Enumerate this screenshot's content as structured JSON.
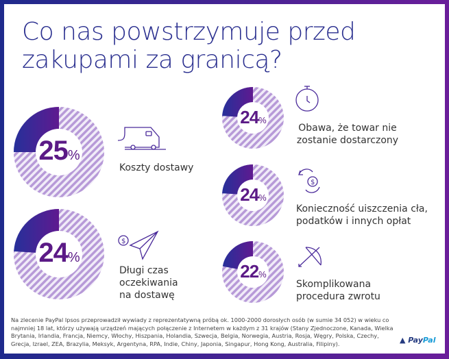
{
  "title_line1": "Co nas powstrzymuje przed",
  "title_line2": "zakupami za granicą?",
  "items": [
    {
      "value": "25",
      "unit": "%",
      "fraction": 0.25,
      "label": "Koszty dostawy",
      "icon": "delivery-van-icon"
    },
    {
      "value": "24",
      "unit": "%",
      "fraction": 0.24,
      "label": "Długi czas oczekiwania na dostawę",
      "icon": "paper-plane-dollar-icon"
    },
    {
      "value": "24",
      "unit": "%",
      "fraction": 0.24,
      "label": "Obawa, że towar nie zostanie dostarczony",
      "icon": "stopwatch-icon"
    },
    {
      "value": "24",
      "unit": "%",
      "fraction": 0.24,
      "label": "Konieczność uiszczenia cła, podatków i innych opłat",
      "icon": "currency-exchange-icon"
    },
    {
      "value": "22",
      "unit": "%",
      "fraction": 0.22,
      "label": "Skomplikowana procedura zwrotu",
      "icon": "bow-arrow-icon"
    }
  ],
  "footnote": "Na zlecenie PayPal Ipsos przeprowadził wywiady z reprezentatywną próbą ok. 1000-2000 dorosłych osób (w sumie 34 052) w wieku co najmniej 18 lat, którzy używają urządzeń mających połączenie z Internetem w każdym z 31 krajów (Stany Zjednoczone, Kanada, Wielka Brytania, Irlandia, Francja, Niemcy, Włochy, Hiszpania, Holandia, Szwecja, Belgia, Norwegia, Austria, Rosja, Węgry, Polska, Czechy, Grecja, Izrael, ZEA, Brazylia, Meksyk, Argentyna, RPA, Indie, Chiny, Japonia, Singapur, Hong Kong, Australia, Filipiny).",
  "logo": {
    "pay": "Pay",
    "pal": "Pal"
  },
  "colors": {
    "accent": "#5b1a86",
    "fill_start": "#26309a",
    "fill_end": "#5f1a90",
    "title": "#2a2f8f"
  }
}
